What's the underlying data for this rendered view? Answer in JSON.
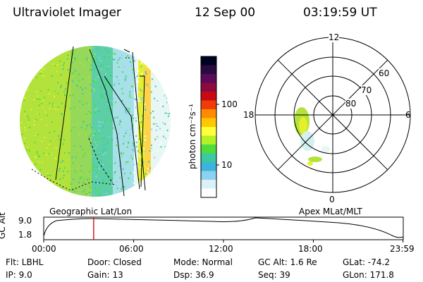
{
  "header": {
    "instrument": "Ultraviolet Imager",
    "date": "12 Sep 00",
    "time": "03:19:59 UT"
  },
  "colorbar": {
    "unit_label": "photon cm⁻²s⁻¹",
    "ticks": [
      "100",
      "10"
    ],
    "colors": [
      "#000020",
      "#2a0a40",
      "#5a0a5a",
      "#8c0a3c",
      "#c80a14",
      "#f03c0a",
      "#ff8c00",
      "#ffc800",
      "#ffff3c",
      "#b4f028",
      "#50dc3c",
      "#3cc8a0",
      "#3cb4dc",
      "#8cd2f0",
      "#dcf0f8",
      "#ffffff"
    ]
  },
  "left_panel": {
    "caption": "Geographic Lat/Lon"
  },
  "right_panel": {
    "caption": "Apex MLat/MLT",
    "mlt_labels": [
      "12",
      "18",
      "6",
      "0"
    ],
    "lat_labels": [
      "60",
      "70",
      "80"
    ]
  },
  "timeline": {
    "ylabel": "GC Alt",
    "ytick_top": "9.0",
    "ytick_bottom": "1.8",
    "xticks": [
      "00:00",
      "06:00",
      "12:00",
      "18:00",
      "23:59"
    ],
    "marker_time": "03:20",
    "marker_color": "#cc2222"
  },
  "footer": {
    "filter": "Flt: LBHL",
    "ip": "IP:  9.0",
    "door": "Door: Closed",
    "gain": "Gain: 13",
    "mode": "Mode: Normal",
    "dsp": "Dsp:    36.9",
    "gc_alt": "GC Alt: 1.6 Re",
    "seq": "Seq: 39",
    "glat": "GLat: -74.2",
    "glon": "GLon: 171.8"
  }
}
